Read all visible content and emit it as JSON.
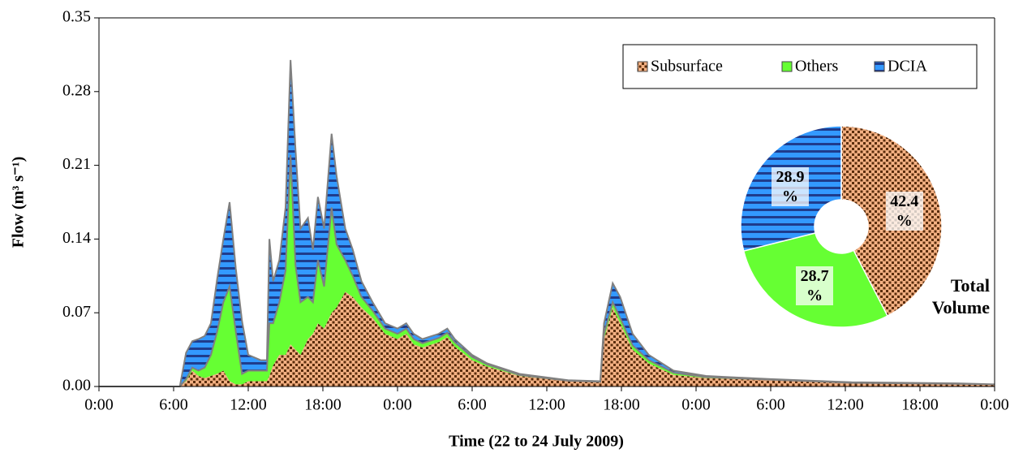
{
  "chart_data": [
    {
      "type": "area",
      "stacked": true,
      "xlabel": "Time (22 to 24 July 2009)",
      "ylabel": "Flow (m³ s⁻¹)",
      "xlim": [
        0,
        72
      ],
      "ylim": [
        0,
        0.35
      ],
      "xticks": [
        {
          "value": 0,
          "label": "0:00"
        },
        {
          "value": 6,
          "label": "6:00"
        },
        {
          "value": 12,
          "label": "12:00"
        },
        {
          "value": 18,
          "label": "18:00"
        },
        {
          "value": 24,
          "label": "0:00"
        },
        {
          "value": 30,
          "label": "6:00"
        },
        {
          "value": 36,
          "label": "12:00"
        },
        {
          "value": 42,
          "label": "18:00"
        },
        {
          "value": 48,
          "label": "0:00"
        },
        {
          "value": 54,
          "label": "6:00"
        },
        {
          "value": 60,
          "label": "12:00"
        },
        {
          "value": 66,
          "label": "18:00"
        },
        {
          "value": 72,
          "label": "0:00"
        }
      ],
      "yticks": [
        {
          "value": 0,
          "label": "0.00"
        },
        0.07,
        0.14,
        0.21,
        0.28,
        0.35
      ],
      "legend": "upper right",
      "x": [
        0,
        6.5,
        7,
        7.5,
        8,
        8.5,
        9,
        9.5,
        10,
        10.5,
        11,
        11.5,
        12,
        13,
        13.5,
        13.7,
        14,
        14.5,
        15,
        15.4,
        15.8,
        16.2,
        16.8,
        17.2,
        17.6,
        18.1,
        18.7,
        19.1,
        19.8,
        20.4,
        21.1,
        22,
        23,
        24,
        24.7,
        25.3,
        26,
        27.3,
        28,
        28.6,
        30,
        31.2,
        33.8,
        37.7,
        40.3,
        40.6,
        41.3,
        41.9,
        42.9,
        44.2,
        46.2,
        48.8,
        54,
        60.5,
        69,
        72
      ],
      "series": [
        {
          "name": "Subsurface",
          "color": "#f4b183",
          "pattern": "dots",
          "values": [
            0,
            0,
            0.005,
            0.015,
            0.01,
            0.008,
            0.01,
            0.012,
            0.015,
            0.005,
            0.002,
            0.002,
            0.005,
            0.005,
            0.005,
            0.01,
            0.02,
            0.03,
            0.03,
            0.04,
            0.035,
            0.03,
            0.045,
            0.05,
            0.06,
            0.055,
            0.07,
            0.075,
            0.09,
            0.085,
            0.075,
            0.065,
            0.05,
            0.045,
            0.05,
            0.04,
            0.037,
            0.042,
            0.047,
            0.038,
            0.025,
            0.019,
            0.01,
            0.005,
            0.004,
            0.045,
            0.075,
            0.06,
            0.035,
            0.022,
            0.011,
            0.008,
            0.006,
            0.003,
            0.002,
            0.002
          ]
        },
        {
          "name": "Others",
          "color": "#66ff33",
          "pattern": "solid",
          "values": [
            0,
            0,
            0.002,
            0.003,
            0.005,
            0.01,
            0.02,
            0.04,
            0.065,
            0.09,
            0.05,
            0.01,
            0.01,
            0.01,
            0.01,
            0.05,
            0.04,
            0.05,
            0.08,
            0.18,
            0.08,
            0.05,
            0.04,
            0.03,
            0.06,
            0.04,
            0.1,
            0.06,
            0.03,
            0.02,
            0.01,
            0.007,
            0.005,
            0.005,
            0.005,
            0.005,
            0.004,
            0.004,
            0.004,
            0.004,
            0.003,
            0.002,
            0.001,
            0.0005,
            0.0005,
            0.005,
            0.005,
            0.005,
            0.004,
            0.003,
            0.002,
            0.001,
            0.0005,
            0.0005,
            0.0005,
            0
          ]
        },
        {
          "name": "DCIA",
          "color": "#3399ff",
          "pattern": "stripes",
          "values": [
            0,
            0,
            0.025,
            0.025,
            0.03,
            0.03,
            0.03,
            0.05,
            0.06,
            0.08,
            0.06,
            0.05,
            0.015,
            0.01,
            0.01,
            0.08,
            0.04,
            0.04,
            0.06,
            0.09,
            0.11,
            0.07,
            0.075,
            0.05,
            0.06,
            0.055,
            0.07,
            0.065,
            0.03,
            0.025,
            0.015,
            0.008,
            0.005,
            0.005,
            0.005,
            0.005,
            0.004,
            0.004,
            0.004,
            0.003,
            0.002,
            0.001,
            0.001,
            0.0005,
            0.0005,
            0.01,
            0.018,
            0.02,
            0.011,
            0.005,
            0.002,
            0.001,
            0.0005,
            0.0005,
            0.0005,
            0
          ]
        }
      ]
    },
    {
      "type": "pie",
      "title": "Total Volume",
      "donut": true,
      "values": [
        42.4,
        28.7,
        28.9
      ],
      "value_labels": [
        "42.4 %",
        "28.7 %",
        "28.9 %"
      ],
      "colors": [
        "#f4b183",
        "#66ff33",
        "#3399ff"
      ],
      "patterns": [
        "dots",
        "solid",
        "stripes"
      ]
    }
  ]
}
